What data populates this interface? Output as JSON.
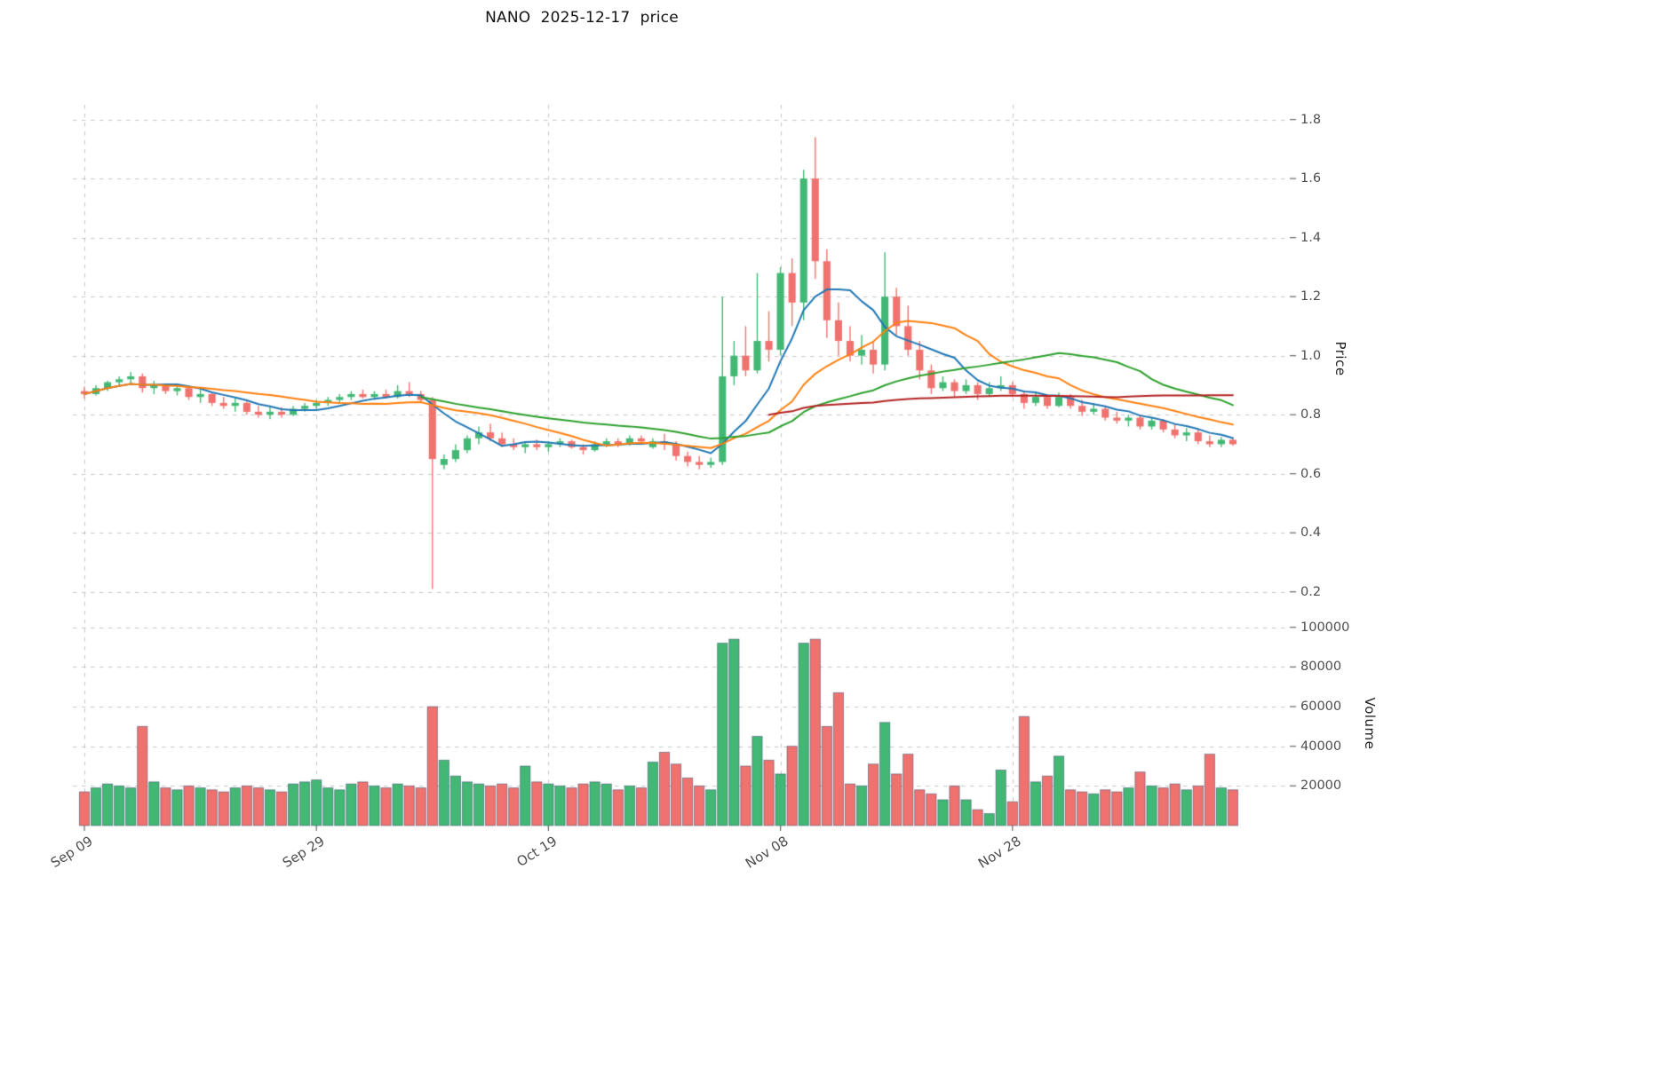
{
  "title": "NANO  2025-12-17  price",
  "axes": {
    "price_label": "Price",
    "volume_label": "Volume",
    "price_ticks": [
      "0.2",
      "0.4",
      "0.6",
      "0.8",
      "1.0",
      "1.2",
      "1.4",
      "1.6",
      "1.8"
    ],
    "volume_ticks": [
      "20000",
      "40000",
      "60000",
      "80000",
      "100000"
    ],
    "x_tick_labels": [
      "Sep 09",
      "Sep 29",
      "Oct 19",
      "Nov 08",
      "Nov 28"
    ],
    "x_tick_indices": [
      0,
      20,
      40,
      60,
      80
    ]
  },
  "chart_data": {
    "type": "candlestick",
    "symbol": "NANO",
    "as_of_date": "2025-12-17",
    "num_candles": 100,
    "price_ylim": [
      0.13,
      1.85
    ],
    "volume_ylim": [
      0,
      103000
    ],
    "grid": true,
    "legend_position": "none",
    "columns": [
      "open",
      "high",
      "low",
      "close",
      "volume"
    ],
    "candles": [
      [
        0.88,
        0.895,
        0.855,
        0.87,
        17000
      ],
      [
        0.87,
        0.9,
        0.865,
        0.89,
        19000
      ],
      [
        0.89,
        0.915,
        0.88,
        0.91,
        21000
      ],
      [
        0.91,
        0.93,
        0.895,
        0.92,
        20000
      ],
      [
        0.92,
        0.945,
        0.9,
        0.93,
        19000
      ],
      [
        0.93,
        0.94,
        0.875,
        0.89,
        50000
      ],
      [
        0.89,
        0.915,
        0.87,
        0.9,
        22000
      ],
      [
        0.9,
        0.905,
        0.87,
        0.88,
        19000
      ],
      [
        0.88,
        0.9,
        0.865,
        0.89,
        18000
      ],
      [
        0.89,
        0.895,
        0.85,
        0.86,
        20000
      ],
      [
        0.86,
        0.885,
        0.84,
        0.87,
        19000
      ],
      [
        0.87,
        0.875,
        0.83,
        0.84,
        18000
      ],
      [
        0.84,
        0.86,
        0.82,
        0.83,
        17000
      ],
      [
        0.83,
        0.855,
        0.81,
        0.84,
        19000
      ],
      [
        0.84,
        0.845,
        0.8,
        0.81,
        20000
      ],
      [
        0.81,
        0.83,
        0.79,
        0.8,
        19000
      ],
      [
        0.8,
        0.825,
        0.785,
        0.81,
        18000
      ],
      [
        0.81,
        0.825,
        0.79,
        0.8,
        17000
      ],
      [
        0.8,
        0.83,
        0.795,
        0.82,
        21000
      ],
      [
        0.82,
        0.84,
        0.81,
        0.83,
        22000
      ],
      [
        0.83,
        0.85,
        0.82,
        0.84,
        23000
      ],
      [
        0.84,
        0.86,
        0.83,
        0.85,
        19000
      ],
      [
        0.85,
        0.87,
        0.84,
        0.86,
        18000
      ],
      [
        0.86,
        0.88,
        0.85,
        0.87,
        21000
      ],
      [
        0.87,
        0.885,
        0.855,
        0.86,
        22000
      ],
      [
        0.86,
        0.88,
        0.85,
        0.87,
        20000
      ],
      [
        0.87,
        0.885,
        0.855,
        0.86,
        19000
      ],
      [
        0.86,
        0.9,
        0.855,
        0.88,
        21000
      ],
      [
        0.88,
        0.91,
        0.86,
        0.87,
        20000
      ],
      [
        0.87,
        0.88,
        0.84,
        0.85,
        19000
      ],
      [
        0.85,
        0.86,
        0.21,
        0.65,
        60000
      ],
      [
        0.63,
        0.665,
        0.615,
        0.65,
        33000
      ],
      [
        0.65,
        0.7,
        0.64,
        0.68,
        25000
      ],
      [
        0.68,
        0.73,
        0.67,
        0.72,
        22000
      ],
      [
        0.72,
        0.76,
        0.7,
        0.74,
        21000
      ],
      [
        0.74,
        0.77,
        0.71,
        0.72,
        20000
      ],
      [
        0.72,
        0.74,
        0.69,
        0.7,
        21000
      ],
      [
        0.7,
        0.72,
        0.68,
        0.69,
        19000
      ],
      [
        0.69,
        0.71,
        0.67,
        0.7,
        30000
      ],
      [
        0.7,
        0.715,
        0.68,
        0.69,
        22000
      ],
      [
        0.69,
        0.71,
        0.675,
        0.7,
        21000
      ],
      [
        0.7,
        0.72,
        0.69,
        0.71,
        20000
      ],
      [
        0.71,
        0.715,
        0.685,
        0.69,
        19000
      ],
      [
        0.69,
        0.7,
        0.665,
        0.68,
        21000
      ],
      [
        0.68,
        0.71,
        0.675,
        0.7,
        22000
      ],
      [
        0.7,
        0.72,
        0.69,
        0.71,
        21000
      ],
      [
        0.71,
        0.72,
        0.69,
        0.7,
        18000
      ],
      [
        0.7,
        0.73,
        0.695,
        0.72,
        20000
      ],
      [
        0.72,
        0.73,
        0.7,
        0.71,
        19000
      ],
      [
        0.69,
        0.72,
        0.685,
        0.71,
        32000
      ],
      [
        0.71,
        0.735,
        0.68,
        0.7,
        37000
      ],
      [
        0.7,
        0.71,
        0.645,
        0.66,
        31000
      ],
      [
        0.66,
        0.675,
        0.625,
        0.64,
        24000
      ],
      [
        0.64,
        0.66,
        0.615,
        0.63,
        20000
      ],
      [
        0.63,
        0.655,
        0.62,
        0.64,
        18000
      ],
      [
        0.64,
        1.2,
        0.63,
        0.93,
        92000
      ],
      [
        0.93,
        1.05,
        0.9,
        1.0,
        94000
      ],
      [
        1.0,
        1.1,
        0.93,
        0.95,
        30000
      ],
      [
        0.95,
        1.28,
        0.94,
        1.05,
        45000
      ],
      [
        1.05,
        1.15,
        0.98,
        1.02,
        33000
      ],
      [
        1.02,
        1.3,
        1.0,
        1.28,
        26000
      ],
      [
        1.28,
        1.33,
        1.1,
        1.18,
        40000
      ],
      [
        1.18,
        1.63,
        1.12,
        1.6,
        92000
      ],
      [
        1.6,
        1.74,
        1.26,
        1.32,
        94000
      ],
      [
        1.32,
        1.36,
        1.06,
        1.12,
        50000
      ],
      [
        1.12,
        1.18,
        1.0,
        1.05,
        67000
      ],
      [
        1.05,
        1.1,
        0.98,
        1.0,
        21000
      ],
      [
        1.0,
        1.07,
        0.97,
        1.02,
        20000
      ],
      [
        1.02,
        1.05,
        0.94,
        0.97,
        31000
      ],
      [
        0.97,
        1.35,
        0.95,
        1.2,
        52000
      ],
      [
        1.2,
        1.23,
        1.07,
        1.1,
        26000
      ],
      [
        1.1,
        1.17,
        1.0,
        1.02,
        36000
      ],
      [
        1.02,
        1.05,
        0.92,
        0.95,
        18000
      ],
      [
        0.95,
        0.97,
        0.87,
        0.89,
        16000
      ],
      [
        0.89,
        0.93,
        0.88,
        0.91,
        13000
      ],
      [
        0.91,
        0.92,
        0.86,
        0.88,
        20000
      ],
      [
        0.88,
        0.92,
        0.87,
        0.9,
        13000
      ],
      [
        0.9,
        0.91,
        0.85,
        0.87,
        8000
      ],
      [
        0.87,
        0.91,
        0.86,
        0.89,
        6000
      ],
      [
        0.89,
        0.93,
        0.88,
        0.9,
        28000
      ],
      [
        0.9,
        0.91,
        0.86,
        0.87,
        12000
      ],
      [
        0.87,
        0.88,
        0.82,
        0.84,
        55000
      ],
      [
        0.84,
        0.875,
        0.83,
        0.86,
        22000
      ],
      [
        0.86,
        0.87,
        0.82,
        0.83,
        25000
      ],
      [
        0.83,
        0.875,
        0.825,
        0.86,
        35000
      ],
      [
        0.86,
        0.87,
        0.82,
        0.83,
        18000
      ],
      [
        0.83,
        0.85,
        0.795,
        0.81,
        17000
      ],
      [
        0.81,
        0.84,
        0.8,
        0.82,
        16000
      ],
      [
        0.82,
        0.83,
        0.78,
        0.79,
        18000
      ],
      [
        0.79,
        0.81,
        0.77,
        0.78,
        17000
      ],
      [
        0.78,
        0.8,
        0.76,
        0.79,
        19000
      ],
      [
        0.79,
        0.8,
        0.75,
        0.76,
        27000
      ],
      [
        0.76,
        0.79,
        0.75,
        0.78,
        20000
      ],
      [
        0.78,
        0.785,
        0.74,
        0.75,
        19000
      ],
      [
        0.75,
        0.77,
        0.72,
        0.73,
        21000
      ],
      [
        0.73,
        0.755,
        0.71,
        0.74,
        18000
      ],
      [
        0.74,
        0.75,
        0.7,
        0.71,
        20000
      ],
      [
        0.71,
        0.73,
        0.69,
        0.7,
        36000
      ],
      [
        0.7,
        0.725,
        0.69,
        0.715,
        19000
      ],
      [
        0.715,
        0.72,
        0.695,
        0.7,
        18000
      ]
    ],
    "moving_averages": [
      {
        "name": "ma-fast",
        "window": 7,
        "min_periods": 1,
        "color": "#1f77b4"
      },
      {
        "name": "ma-medium",
        "window": 16,
        "min_periods": 1,
        "color": "#ff7f0e"
      },
      {
        "name": "ma-slow",
        "window": 30,
        "min_periods": 30,
        "color": "#2ca02c"
      },
      {
        "name": "ma-long",
        "window": 60,
        "min_periods": 60,
        "color": "#b22222"
      }
    ],
    "colors": {
      "up": "#42b874",
      "down": "#f0726e",
      "volume_edge": "rgba(45,65,100,0.55)",
      "grid": "rgba(130,130,130,0.45)",
      "tick_text": "#4d4d4d"
    }
  }
}
